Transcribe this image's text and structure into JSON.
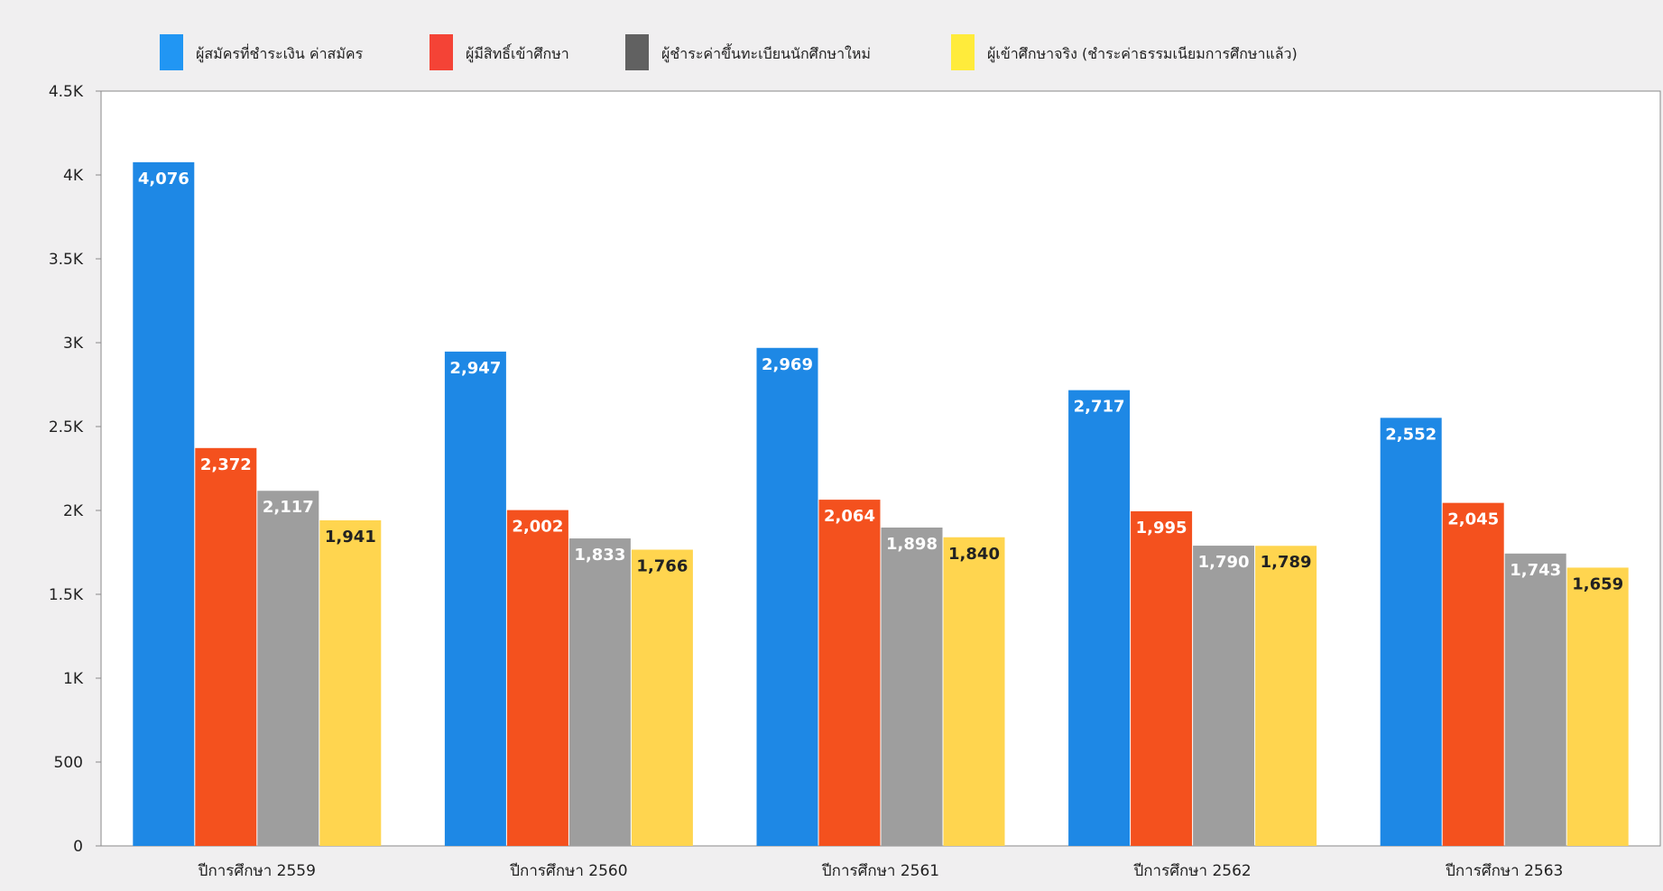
{
  "chart_data": {
    "type": "bar",
    "title": "",
    "xlabel": "",
    "ylabel": "",
    "ylim": [
      0,
      4500
    ],
    "yticks": [
      {
        "value": 0,
        "label": "0"
      },
      {
        "value": 500,
        "label": "500"
      },
      {
        "value": 1000,
        "label": "1K"
      },
      {
        "value": 1500,
        "label": "1.5K"
      },
      {
        "value": 2000,
        "label": "2K"
      },
      {
        "value": 2500,
        "label": "2.5K"
      },
      {
        "value": 3000,
        "label": "3K"
      },
      {
        "value": 3500,
        "label": "3.5K"
      },
      {
        "value": 4000,
        "label": "4K"
      },
      {
        "value": 4500,
        "label": "4.5K"
      }
    ],
    "categories": [
      "ปีการศึกษา 2559",
      "ปีการศึกษา 2560",
      "ปีการศึกษา 2561",
      "ปีการศึกษา 2562",
      "ปีการศึกษา 2563"
    ],
    "legend_position": "top",
    "grid": false,
    "series": [
      {
        "name": "ผู้สมัครที่ชำระเงิน ค่าสมัคร",
        "color": "#1e88e5",
        "legend_color": "#2196f3",
        "label_color": "#ffffff",
        "values": [
          4076,
          2947,
          2969,
          2717,
          2552
        ],
        "labels": [
          "4,076",
          "2,947",
          "2,969",
          "2,717",
          "2,552"
        ]
      },
      {
        "name": "ผู้มีสิทธิ์เข้าศึกษา",
        "color": "#f4511e",
        "legend_color": "#f44336",
        "label_color": "#ffffff",
        "values": [
          2372,
          2002,
          2064,
          1995,
          2045
        ],
        "labels": [
          "2,372",
          "2,002",
          "2,064",
          "1,995",
          "2,045"
        ]
      },
      {
        "name": "ผู้ชำระค่าขึ้นทะเบียนนักศึกษาใหม่",
        "color": "#9e9e9e",
        "legend_color": "#616161",
        "label_color": "#ffffff",
        "values": [
          2117,
          1833,
          1898,
          1790,
          1743
        ],
        "labels": [
          "2,117",
          "1,833",
          "1,898",
          "1,790",
          "1,743"
        ]
      },
      {
        "name": "ผู้เข้าศึกษาจริง (ชำระค่าธรรมเนียมการศึกษาแล้ว)",
        "color": "#ffd54f",
        "legend_color": "#ffeb3b",
        "label_color": "#222222",
        "values": [
          1941,
          1766,
          1840,
          1789,
          1659
        ],
        "labels": [
          "1,941",
          "1,766",
          "1,840",
          "1,789",
          "1,659"
        ]
      }
    ]
  }
}
